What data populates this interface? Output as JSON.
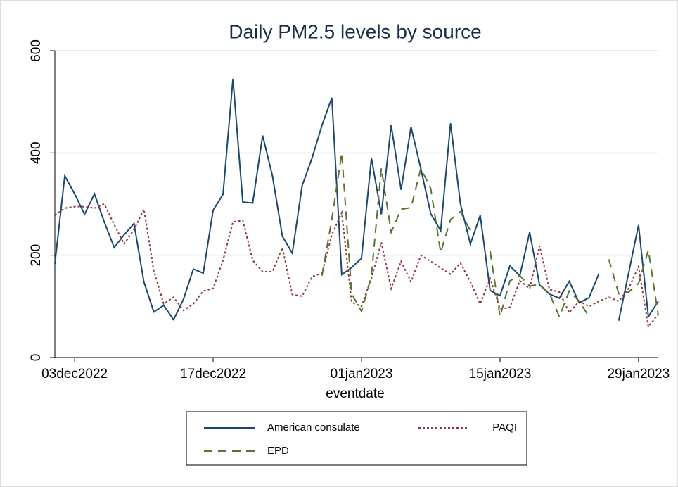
{
  "chart_data": {
    "type": "line",
    "title": "Daily PM2.5 levels by source",
    "xlabel": "eventdate",
    "x": [
      "01dec2022",
      "02dec2022",
      "03dec2022",
      "04dec2022",
      "05dec2022",
      "06dec2022",
      "07dec2022",
      "08dec2022",
      "09dec2022",
      "10dec2022",
      "11dec2022",
      "12dec2022",
      "13dec2022",
      "14dec2022",
      "15dec2022",
      "16dec2022",
      "17dec2022",
      "18dec2022",
      "19dec2022",
      "20dec2022",
      "21dec2022",
      "22dec2022",
      "23dec2022",
      "24dec2022",
      "25dec2022",
      "26dec2022",
      "27dec2022",
      "28dec2022",
      "29dec2022",
      "30dec2022",
      "31dec2022",
      "01jan2023",
      "02jan2023",
      "03jan2023",
      "04jan2023",
      "05jan2023",
      "06jan2023",
      "07jan2023",
      "08jan2023",
      "09jan2023",
      "10jan2023",
      "11jan2023",
      "12jan2023",
      "13jan2023",
      "14jan2023",
      "15jan2023",
      "16jan2023",
      "17jan2023",
      "18jan2023",
      "19jan2023",
      "20jan2023",
      "21jan2023",
      "22jan2023",
      "23jan2023",
      "24jan2023",
      "25jan2023",
      "26jan2023",
      "27jan2023",
      "28jan2023",
      "29jan2023",
      "30jan2023",
      "31jan2023"
    ],
    "xlim": [
      "01dec2022",
      "31jan2023"
    ],
    "xticks": [
      "03dec2022",
      "17dec2022",
      "01jan2023",
      "15jan2023",
      "29jan2023"
    ],
    "ylim": [
      0,
      600
    ],
    "yticks": [
      0,
      200,
      400,
      600
    ],
    "grid": true,
    "legend": "bottom",
    "series": [
      {
        "name": "American consulate",
        "color": "#1a476f",
        "style": "solid",
        "values": [
          183,
          355,
          320,
          280,
          320,
          265,
          215,
          240,
          262,
          148,
          89,
          102,
          74,
          114,
          173,
          165,
          288,
          319,
          545,
          304,
          302,
          434,
          355,
          237,
          204,
          336,
          390,
          454,
          508,
          162,
          176,
          194,
          390,
          280,
          454,
          328,
          451,
          369,
          281,
          248,
          458,
          300,
          222,
          278,
          131,
          121,
          179,
          160,
          245,
          142,
          124,
          116,
          149,
          107,
          117,
          164,
          null,
          72,
          165,
          259,
          80,
          110
        ]
      },
      {
        "name": "PAQI",
        "color": "#90353b",
        "style": "dotted",
        "values": [
          278,
          292,
          295,
          295,
          292,
          300,
          260,
          222,
          250,
          290,
          170,
          105,
          118,
          92,
          105,
          130,
          135,
          190,
          265,
          268,
          190,
          168,
          168,
          215,
          123,
          120,
          158,
          165,
          240,
          283,
          108,
          100,
          155,
          225,
          135,
          188,
          148,
          200,
          188,
          175,
          163,
          185,
          148,
          105,
          155,
          95,
          98,
          150,
          135,
          218,
          133,
          128,
          88,
          110,
          100,
          110,
          118,
          110,
          135,
          178,
          60,
          85
        ]
      },
      {
        "name": "EPD",
        "color": "#55752f",
        "style": "dashed",
        "values": [
          null,
          null,
          null,
          null,
          null,
          null,
          null,
          null,
          null,
          null,
          null,
          null,
          null,
          null,
          null,
          null,
          null,
          null,
          null,
          null,
          null,
          null,
          null,
          null,
          null,
          null,
          null,
          160,
          270,
          400,
          125,
          90,
          160,
          370,
          245,
          290,
          293,
          370,
          330,
          205,
          270,
          285,
          248,
          null,
          208,
          80,
          150,
          160,
          140,
          143,
          125,
          80,
          130,
          110,
          80,
          null,
          192,
          125,
          128,
          145,
          210,
          82
        ]
      }
    ]
  }
}
